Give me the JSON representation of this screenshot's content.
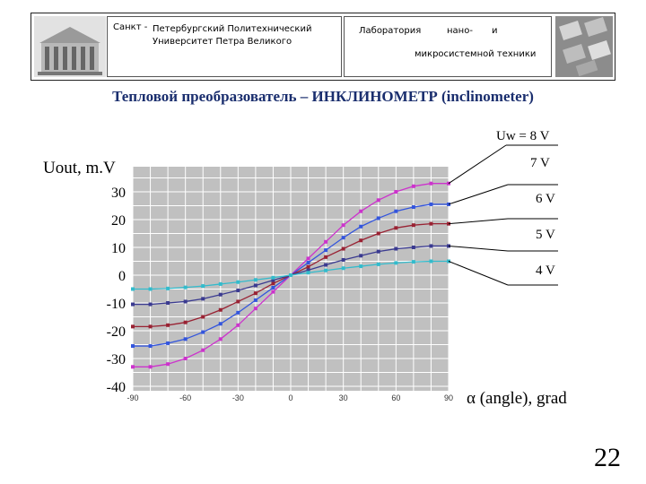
{
  "header": {
    "university_prefix": "Санкт -",
    "university_line1": "Петербургский Политехнический",
    "university_line2": "Университет Петра Великого",
    "lab_word": "Лаборатория",
    "lab_nano": "нано-",
    "lab_and": "и",
    "lab_line2": "микросистемной техники"
  },
  "title": "Тепловой преобразователь – ИНКЛИНОМЕТР (inclinometer)",
  "slide_number": "22",
  "chart_data": {
    "type": "line",
    "ylabel": "Uout, m.V",
    "xlabel": "α (angle), grad",
    "x_ticks": [
      "-90",
      "-60",
      "-30",
      "0",
      "30",
      "60",
      "90"
    ],
    "y_ticks": [
      "30",
      "20",
      "10",
      "0",
      "-10",
      "-20",
      "-30",
      "-40"
    ],
    "xlim": [
      -90,
      90
    ],
    "ylim": [
      -40,
      30
    ],
    "grid": true,
    "x": [
      -90,
      -80,
      -70,
      -60,
      -50,
      -40,
      -30,
      -20,
      -10,
      0,
      10,
      20,
      30,
      40,
      50,
      60,
      70,
      80,
      90
    ],
    "series": [
      {
        "name": "Uw = 8 V",
        "color": "#cc33cc",
        "values": [
          -33,
          -33,
          -32,
          -30,
          -27,
          -23,
          -18,
          -12,
          -6,
          0,
          6,
          12,
          18,
          23,
          27,
          30,
          32,
          33,
          33
        ]
      },
      {
        "name": "7 V",
        "color": "#3355dd",
        "values": [
          -25.5,
          -25.5,
          -24.5,
          -23,
          -20.5,
          -17.5,
          -13.5,
          -9,
          -4.5,
          0,
          4.5,
          9,
          13.5,
          17.5,
          20.5,
          23,
          24.5,
          25.5,
          25.5
        ]
      },
      {
        "name": "6 V",
        "color": "#992233",
        "values": [
          -18.5,
          -18.5,
          -18,
          -17,
          -15,
          -12.5,
          -9.5,
          -6.5,
          -3,
          0,
          3,
          6.5,
          9.5,
          12.5,
          15,
          17,
          18,
          18.5,
          18.5
        ]
      },
      {
        "name": "5 V",
        "color": "#3a3a90",
        "values": [
          -10.5,
          -10.5,
          -10,
          -9.5,
          -8.5,
          -7,
          -5.5,
          -3.7,
          -1.8,
          0,
          1.8,
          3.7,
          5.5,
          7,
          8.5,
          9.5,
          10,
          10.5,
          10.5
        ]
      },
      {
        "name": "4 V",
        "color": "#33bbcc",
        "values": [
          -5,
          -5,
          -4.8,
          -4.4,
          -3.9,
          -3.2,
          -2.5,
          -1.7,
          -0.9,
          0,
          0.9,
          1.7,
          2.5,
          3.2,
          3.9,
          4.4,
          4.8,
          5,
          5
        ]
      }
    ]
  }
}
